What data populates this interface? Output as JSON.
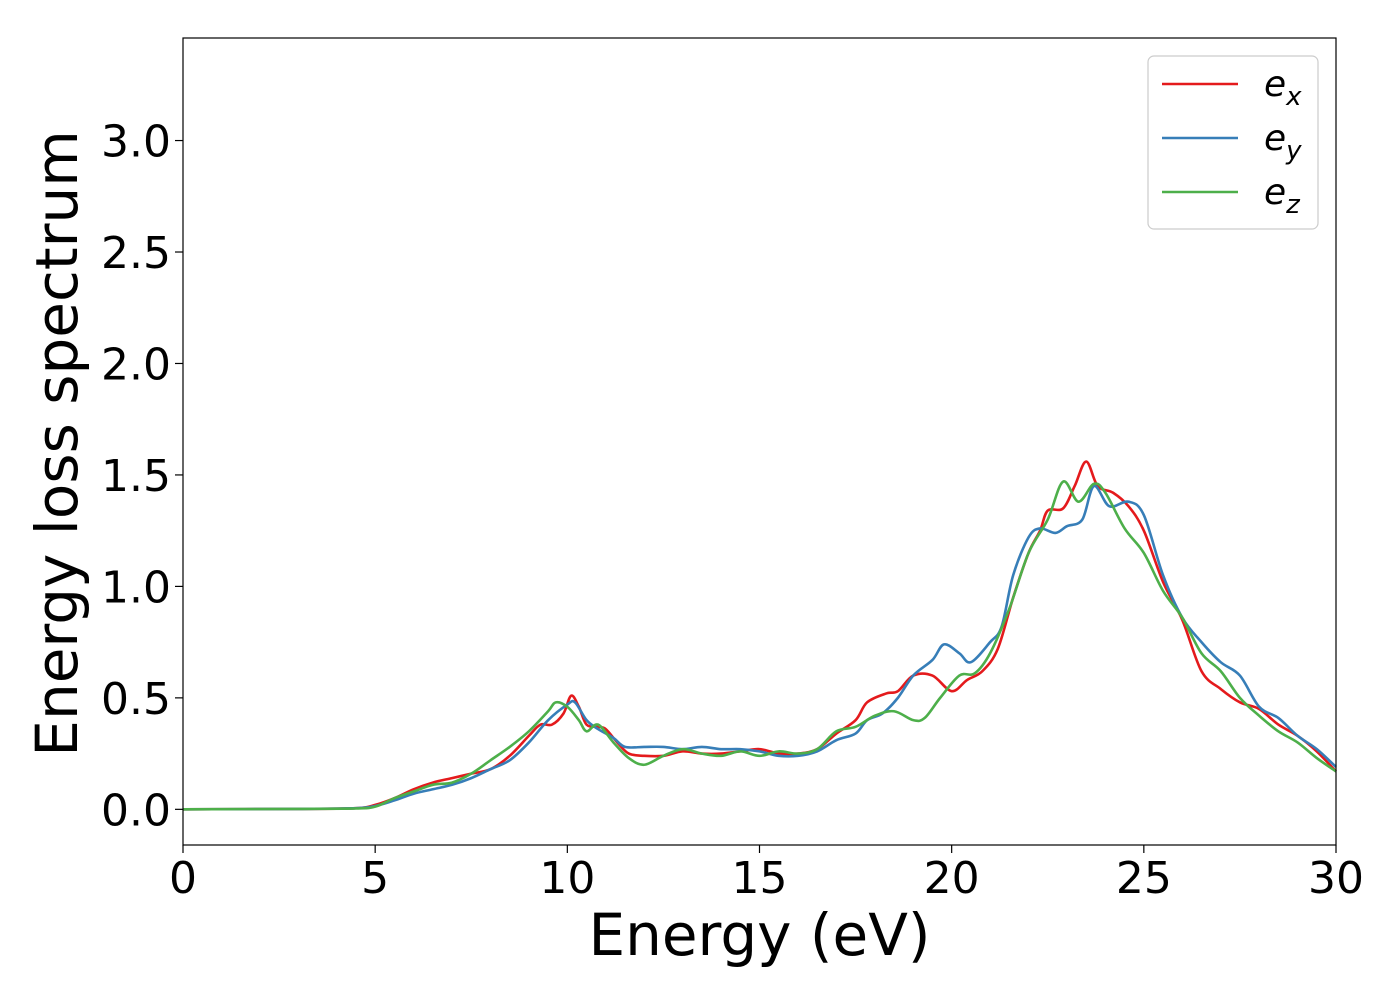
{
  "chart_data": {
    "type": "line",
    "title": "",
    "xlabel": "Energy (eV)",
    "ylabel": "Energy loss spectrum",
    "xlim": [
      0,
      30
    ],
    "ylim": [
      -0.16,
      3.46
    ],
    "xticks": [
      "0",
      "5",
      "10",
      "15",
      "20",
      "25",
      "30"
    ],
    "yticks": [
      "0.0",
      "0.5",
      "1.0",
      "1.5",
      "2.0",
      "2.5",
      "3.0"
    ],
    "grid": false,
    "legend_position": "top-right",
    "series": [
      {
        "name": "e",
        "subscript": "x",
        "color": "#e41a1c",
        "points": [
          [
            0,
            0
          ],
          [
            3,
            0.002
          ],
          [
            4.5,
            0.005
          ],
          [
            5,
            0.02
          ],
          [
            5.5,
            0.05
          ],
          [
            6,
            0.09
          ],
          [
            6.5,
            0.12
          ],
          [
            7,
            0.14
          ],
          [
            7.5,
            0.16
          ],
          [
            8,
            0.18
          ],
          [
            8.5,
            0.24
          ],
          [
            9,
            0.33
          ],
          [
            9.3,
            0.38
          ],
          [
            9.6,
            0.38
          ],
          [
            9.9,
            0.43
          ],
          [
            10.1,
            0.51
          ],
          [
            10.3,
            0.46
          ],
          [
            10.5,
            0.38
          ],
          [
            10.8,
            0.37
          ],
          [
            11,
            0.36
          ],
          [
            11.3,
            0.3
          ],
          [
            11.6,
            0.25
          ],
          [
            12,
            0.24
          ],
          [
            12.5,
            0.24
          ],
          [
            13,
            0.26
          ],
          [
            13.5,
            0.25
          ],
          [
            14,
            0.25
          ],
          [
            14.5,
            0.26
          ],
          [
            15,
            0.27
          ],
          [
            15.5,
            0.25
          ],
          [
            16,
            0.25
          ],
          [
            16.5,
            0.27
          ],
          [
            17,
            0.34
          ],
          [
            17.5,
            0.4
          ],
          [
            17.8,
            0.48
          ],
          [
            18.3,
            0.52
          ],
          [
            18.6,
            0.53
          ],
          [
            19,
            0.6
          ],
          [
            19.5,
            0.6
          ],
          [
            20,
            0.53
          ],
          [
            20.4,
            0.58
          ],
          [
            20.8,
            0.62
          ],
          [
            21.2,
            0.72
          ],
          [
            21.6,
            0.95
          ],
          [
            22,
            1.15
          ],
          [
            22.3,
            1.25
          ],
          [
            22.5,
            1.34
          ],
          [
            22.9,
            1.35
          ],
          [
            23.2,
            1.45
          ],
          [
            23.5,
            1.56
          ],
          [
            23.8,
            1.45
          ],
          [
            24.2,
            1.42
          ],
          [
            24.6,
            1.36
          ],
          [
            25,
            1.25
          ],
          [
            25.5,
            1.02
          ],
          [
            26,
            0.85
          ],
          [
            26.5,
            0.62
          ],
          [
            27,
            0.54
          ],
          [
            27.5,
            0.48
          ],
          [
            28,
            0.45
          ],
          [
            28.5,
            0.38
          ],
          [
            29,
            0.33
          ],
          [
            29.5,
            0.26
          ],
          [
            30,
            0.17
          ]
        ]
      },
      {
        "name": "e",
        "subscript": "y",
        "color": "#377eb8",
        "points": [
          [
            0,
            0
          ],
          [
            3,
            0.002
          ],
          [
            4.5,
            0.005
          ],
          [
            5,
            0.015
          ],
          [
            5.5,
            0.04
          ],
          [
            6,
            0.07
          ],
          [
            6.5,
            0.09
          ],
          [
            7,
            0.11
          ],
          [
            7.5,
            0.14
          ],
          [
            8,
            0.18
          ],
          [
            8.5,
            0.22
          ],
          [
            9,
            0.3
          ],
          [
            9.5,
            0.4
          ],
          [
            10,
            0.47
          ],
          [
            10.2,
            0.48
          ],
          [
            10.5,
            0.4
          ],
          [
            10.8,
            0.36
          ],
          [
            11.2,
            0.32
          ],
          [
            11.5,
            0.28
          ],
          [
            12,
            0.28
          ],
          [
            12.5,
            0.28
          ],
          [
            13,
            0.27
          ],
          [
            13.5,
            0.28
          ],
          [
            14,
            0.27
          ],
          [
            14.5,
            0.27
          ],
          [
            15,
            0.26
          ],
          [
            15.5,
            0.24
          ],
          [
            16,
            0.24
          ],
          [
            16.5,
            0.26
          ],
          [
            17,
            0.31
          ],
          [
            17.5,
            0.34
          ],
          [
            17.8,
            0.4
          ],
          [
            18.2,
            0.43
          ],
          [
            18.6,
            0.5
          ],
          [
            19,
            0.6
          ],
          [
            19.5,
            0.67
          ],
          [
            19.8,
            0.74
          ],
          [
            20.2,
            0.7
          ],
          [
            20.5,
            0.66
          ],
          [
            21,
            0.75
          ],
          [
            21.3,
            0.82
          ],
          [
            21.6,
            1.05
          ],
          [
            22,
            1.22
          ],
          [
            22.3,
            1.26
          ],
          [
            22.7,
            1.24
          ],
          [
            23,
            1.27
          ],
          [
            23.4,
            1.3
          ],
          [
            23.7,
            1.45
          ],
          [
            24.1,
            1.36
          ],
          [
            24.6,
            1.38
          ],
          [
            25,
            1.32
          ],
          [
            25.5,
            1.05
          ],
          [
            26,
            0.86
          ],
          [
            26.5,
            0.75
          ],
          [
            27,
            0.66
          ],
          [
            27.5,
            0.6
          ],
          [
            28,
            0.46
          ],
          [
            28.5,
            0.41
          ],
          [
            29,
            0.33
          ],
          [
            29.5,
            0.27
          ],
          [
            30,
            0.19
          ]
        ]
      },
      {
        "name": "e",
        "subscript": "z",
        "color": "#4daf4a",
        "points": [
          [
            0,
            0
          ],
          [
            3,
            0.002
          ],
          [
            4.5,
            0.004
          ],
          [
            5,
            0.012
          ],
          [
            5.5,
            0.05
          ],
          [
            6,
            0.08
          ],
          [
            6.5,
            0.11
          ],
          [
            7,
            0.12
          ],
          [
            7.5,
            0.16
          ],
          [
            8,
            0.22
          ],
          [
            8.5,
            0.28
          ],
          [
            9,
            0.35
          ],
          [
            9.5,
            0.44
          ],
          [
            9.7,
            0.48
          ],
          [
            10,
            0.46
          ],
          [
            10.3,
            0.4
          ],
          [
            10.5,
            0.35
          ],
          [
            10.8,
            0.38
          ],
          [
            11.2,
            0.3
          ],
          [
            11.6,
            0.23
          ],
          [
            12,
            0.2
          ],
          [
            12.5,
            0.24
          ],
          [
            13,
            0.27
          ],
          [
            13.5,
            0.25
          ],
          [
            14,
            0.24
          ],
          [
            14.5,
            0.26
          ],
          [
            15,
            0.24
          ],
          [
            15.5,
            0.26
          ],
          [
            16,
            0.25
          ],
          [
            16.5,
            0.27
          ],
          [
            17,
            0.35
          ],
          [
            17.5,
            0.37
          ],
          [
            18,
            0.42
          ],
          [
            18.5,
            0.44
          ],
          [
            19,
            0.4
          ],
          [
            19.3,
            0.41
          ],
          [
            19.7,
            0.5
          ],
          [
            20.2,
            0.6
          ],
          [
            20.6,
            0.61
          ],
          [
            21,
            0.7
          ],
          [
            21.5,
            0.9
          ],
          [
            22,
            1.15
          ],
          [
            22.5,
            1.3
          ],
          [
            22.9,
            1.47
          ],
          [
            23.3,
            1.38
          ],
          [
            23.7,
            1.46
          ],
          [
            24,
            1.42
          ],
          [
            24.5,
            1.26
          ],
          [
            25,
            1.15
          ],
          [
            25.5,
            0.98
          ],
          [
            26,
            0.86
          ],
          [
            26.5,
            0.7
          ],
          [
            27,
            0.62
          ],
          [
            27.5,
            0.5
          ],
          [
            28,
            0.42
          ],
          [
            28.5,
            0.35
          ],
          [
            29,
            0.3
          ],
          [
            29.5,
            0.23
          ],
          [
            30,
            0.17
          ]
        ]
      }
    ]
  }
}
